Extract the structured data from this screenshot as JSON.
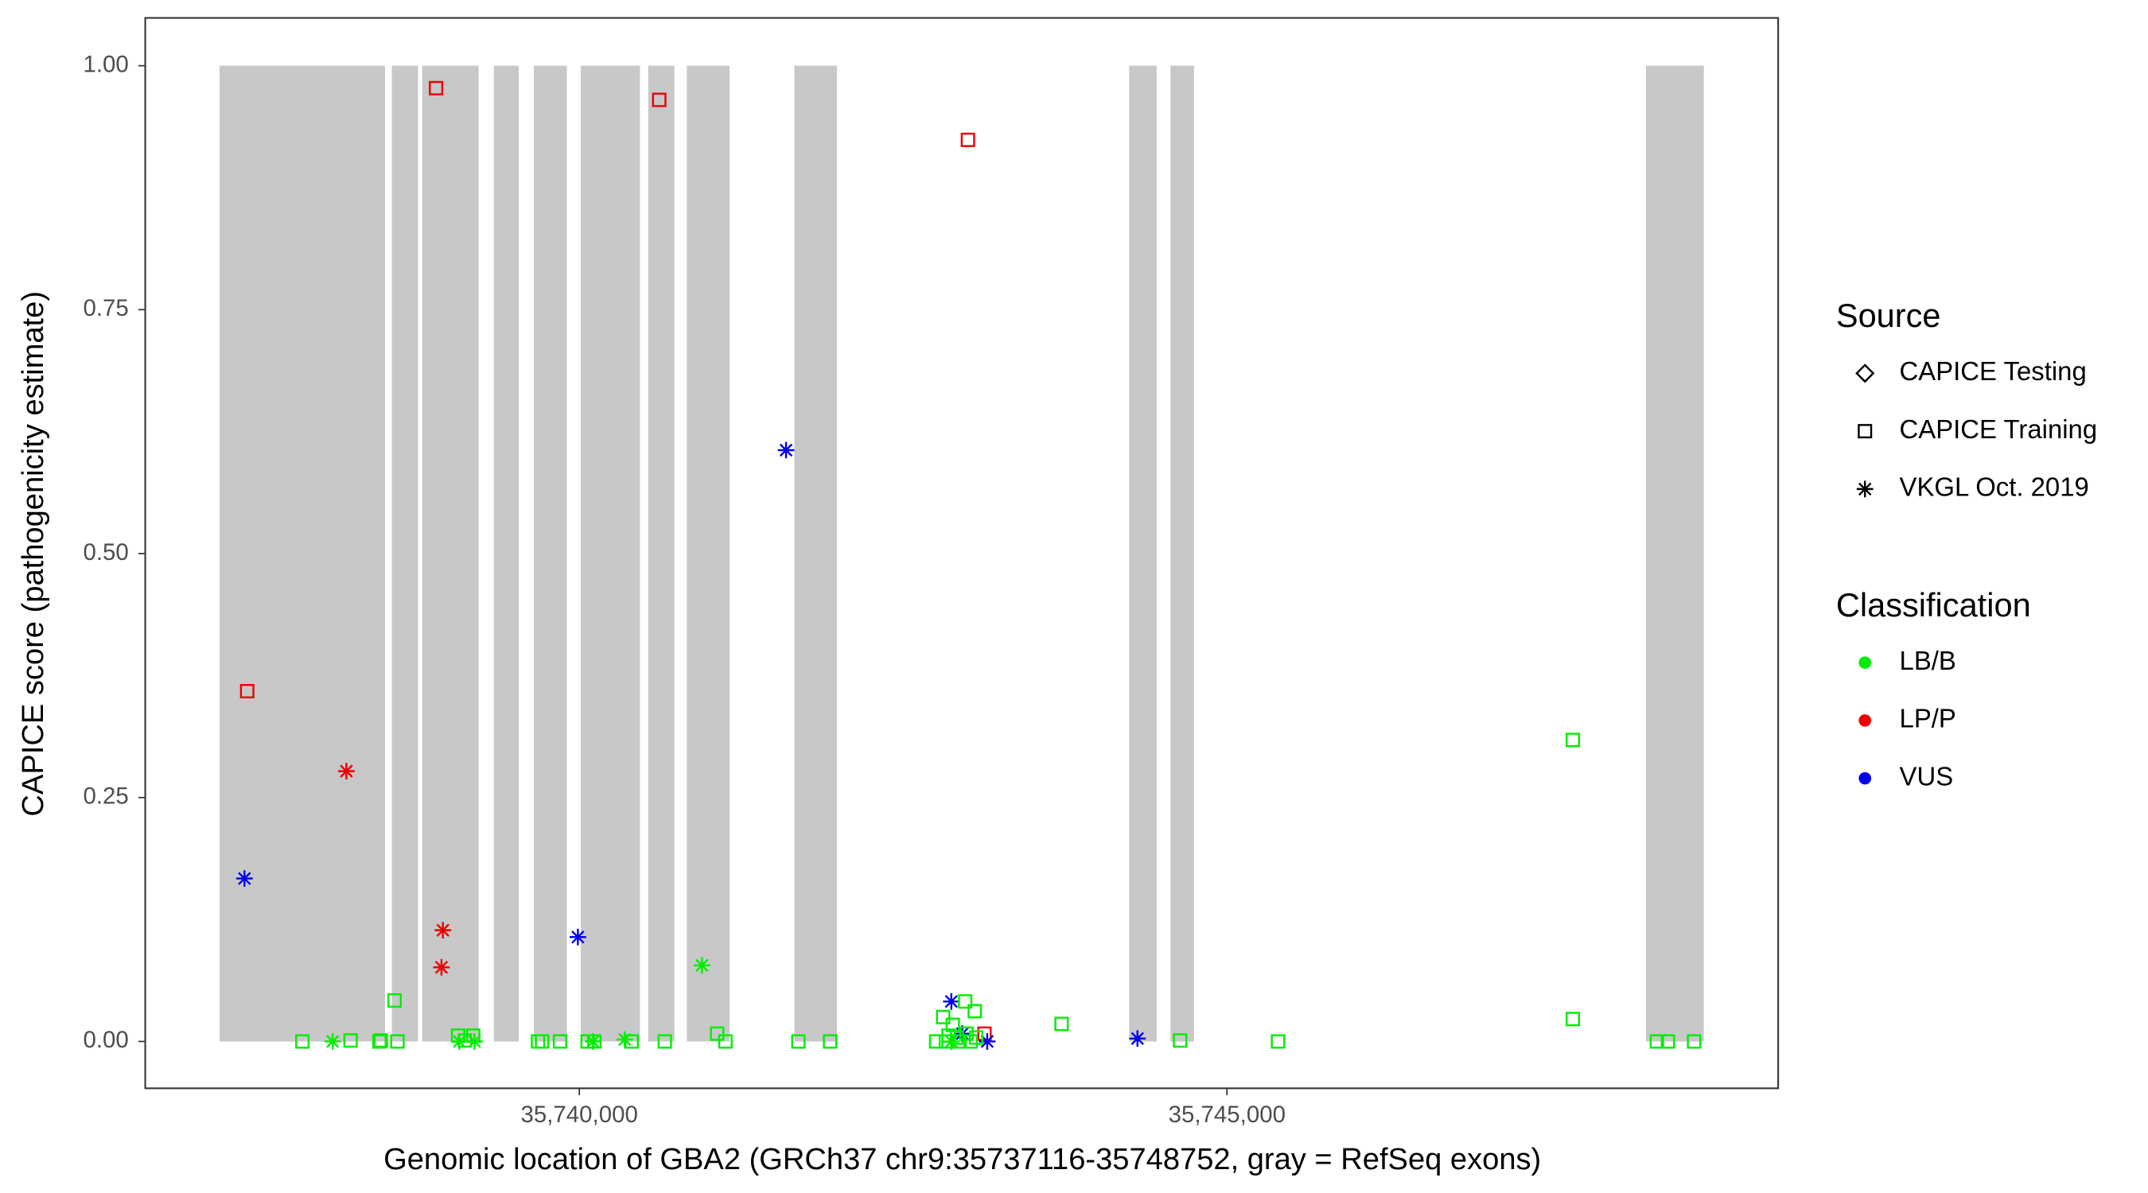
{
  "chart_data": {
    "type": "scatter",
    "x_label": "Genomic location of GBA2 (GRCh37 chr9:35737116-35748752, gray = RefSeq exons)",
    "y_label": "CAPICE score (pathogenicity estimate)",
    "xlim": [
      35736649,
      35749255
    ],
    "ylim": [
      -0.048,
      1.049
    ],
    "xticks": [
      {
        "value": 35740000,
        "label": "35,740,000"
      },
      {
        "value": 35745000,
        "label": "35,745,000"
      }
    ],
    "yticks": [
      {
        "value": 0,
        "label": "0.00"
      },
      {
        "value": 0.25,
        "label": "0.25"
      },
      {
        "value": 0.5,
        "label": "0.50"
      },
      {
        "value": 0.75,
        "label": "0.75"
      },
      {
        "value": 1,
        "label": "1.00"
      }
    ],
    "exon_color": "#c8c8c8",
    "exons": [
      [
        35737223,
        35738500
      ],
      [
        35738553,
        35738755
      ],
      [
        35738787,
        35739223
      ],
      [
        35739340,
        35739532
      ],
      [
        35739649,
        35739904
      ],
      [
        35740011,
        35740468
      ],
      [
        35740532,
        35740734
      ],
      [
        35740830,
        35741160
      ],
      [
        35741660,
        35741989
      ],
      [
        35744245,
        35744457
      ],
      [
        35744564,
        35744745
      ],
      [
        35748234,
        35748681
      ]
    ],
    "source_legend": {
      "title": "Source",
      "entries": [
        {
          "name": "CAPICE Testing",
          "shape": "diamond"
        },
        {
          "name": "CAPICE Training",
          "shape": "square"
        },
        {
          "name": "VKGL Oct. 2019",
          "shape": "star"
        }
      ]
    },
    "class_legend": {
      "title": "Classification",
      "entries": [
        {
          "name": "LB/B",
          "color": "#00ee00"
        },
        {
          "name": "LP/P",
          "color": "#ee0000"
        },
        {
          "name": "VUS",
          "color": "#0000ee"
        }
      ]
    },
    "series": [
      {
        "source": "CAPICE Training",
        "classification": "LP/P",
        "x": [
          35738894,
          35740617,
          35743000,
          35737436,
          35743128
        ],
        "y": [
          0.977,
          0.965,
          0.924,
          0.359,
          0.008
        ]
      },
      {
        "source": "VKGL Oct. 2019",
        "classification": "LP/P",
        "x": [
          35738202,
          35738947,
          35738936
        ],
        "y": [
          0.277,
          0.114,
          0.076
        ]
      },
      {
        "source": "VKGL Oct. 2019",
        "classification": "VUS",
        "x": [
          35737415,
          35741596,
          35739989,
          35742872,
          35742957,
          35743149,
          35744309
        ],
        "y": [
          0.167,
          0.606,
          0.107,
          0.041,
          0.008,
          0,
          0.003
        ]
      },
      {
        "source": "VKGL Oct. 2019",
        "classification": "LB/B",
        "x": [
          35740947,
          35738096,
          35739074,
          35739191,
          35740106,
          35740351,
          35742872
        ],
        "y": [
          0.078,
          0,
          0,
          0,
          0,
          0.002,
          0
        ]
      },
      {
        "source": "CAPICE Training",
        "classification": "LB/B",
        "x": [
          35737862,
          35738234,
          35738457,
          35738468,
          35738596,
          35738574,
          35739064,
          35739117,
          35739181,
          35739681,
          35739713,
          35739851,
          35740064,
          35740117,
          35740404,
          35740660,
          35741064,
          35741128,
          35741691,
          35741936,
          35742755,
          35742809,
          35742883,
          35742979,
          35743053,
          35742851,
          35742915,
          35742989,
          35743064,
          35742830,
          35742936,
          35743021,
          35743723,
          35744638,
          35745394,
          35747670,
          35747670,
          35748319,
          35748404,
          35748606
        ],
        "y": [
          0,
          0.001,
          0,
          0.001,
          0,
          0.042,
          0.006,
          0.001,
          0.006,
          0,
          0,
          0,
          0,
          0,
          0,
          0,
          0.008,
          0,
          0,
          0,
          0,
          0.025,
          0.017,
          0.041,
          0.031,
          0.006,
          0.004,
          0.008,
          0.004,
          0,
          0,
          0,
          0.018,
          0.001,
          0,
          0.309,
          0.023,
          0,
          0,
          0
        ]
      }
    ]
  }
}
